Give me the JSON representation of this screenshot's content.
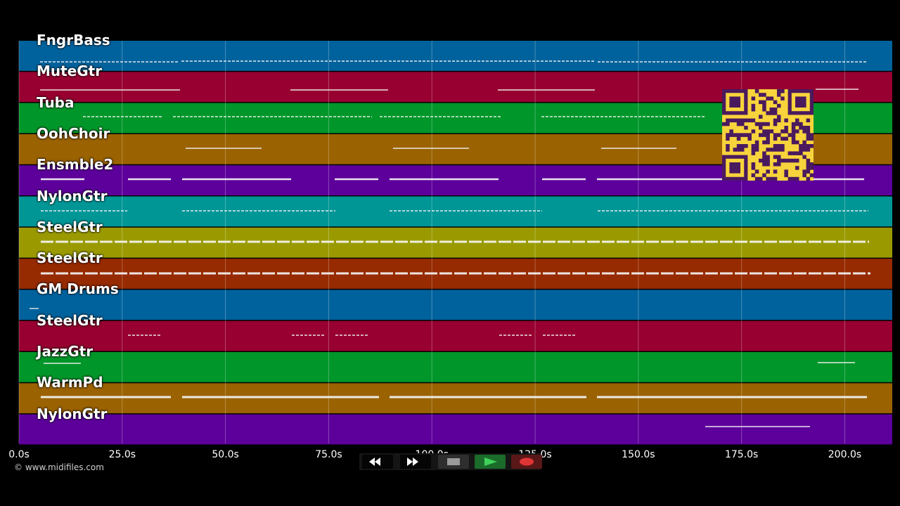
{
  "tracks": [
    {
      "name": "FngrBass",
      "color": "#00629c"
    },
    {
      "name": "MuteGtr",
      "color": "#970030"
    },
    {
      "name": "Tuba",
      "color": "#00962a"
    },
    {
      "name": "OohChoir",
      "color": "#9a6201"
    },
    {
      "name": "Ensmble2",
      "color": "#5d009b"
    },
    {
      "name": "NylonGtr",
      "color": "#009696"
    },
    {
      "name": "SteelGtr",
      "color": "#9a9a00"
    },
    {
      "name": "SteelGtr",
      "color": "#962a00"
    },
    {
      "name": "GM Drums",
      "color": "#00629c"
    },
    {
      "name": "SteelGtr",
      "color": "#970030"
    },
    {
      "name": "JazzGtr",
      "color": "#00962a"
    },
    {
      "name": "WarmPd",
      "color": "#9a6201"
    },
    {
      "name": "NylonGtr",
      "color": "#5d009b"
    }
  ],
  "timeline": {
    "ticks": [
      "0.0s",
      "25.0s",
      "50.0s",
      "75.0s",
      "100.0s",
      "125.0s",
      "150.0s",
      "175.0s",
      "200.0s"
    ],
    "max_seconds": 211.5
  },
  "copyright": "© www.midifiles.com",
  "transport": {
    "buttons": [
      {
        "name": "rewind-button",
        "icon": "rewind-icon"
      },
      {
        "name": "fast-forward-button",
        "icon": "fast-forward-icon"
      },
      {
        "name": "stop-button",
        "icon": "stop-icon"
      },
      {
        "name": "play-button",
        "icon": "play-icon"
      },
      {
        "name": "record-button",
        "icon": "record-icon"
      }
    ]
  },
  "qr_code": {
    "icon": "qr-code-icon",
    "fg": "#4a1a5e",
    "bg": "#f7d33c"
  }
}
